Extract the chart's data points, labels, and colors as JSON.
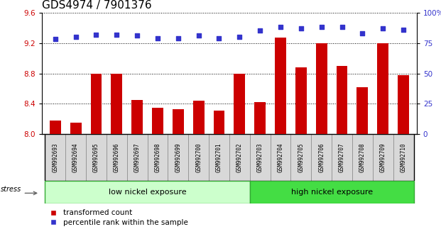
{
  "title": "GDS4974 / 7901376",
  "samples": [
    "GSM992693",
    "GSM992694",
    "GSM992695",
    "GSM992696",
    "GSM992697",
    "GSM992698",
    "GSM992699",
    "GSM992700",
    "GSM992701",
    "GSM992702",
    "GSM992703",
    "GSM992704",
    "GSM992705",
    "GSM992706",
    "GSM992707",
    "GSM992708",
    "GSM992709",
    "GSM992710"
  ],
  "bar_values": [
    8.18,
    8.15,
    8.8,
    8.8,
    8.45,
    8.35,
    8.33,
    8.44,
    8.31,
    8.8,
    8.42,
    9.27,
    8.88,
    9.2,
    8.9,
    8.62,
    9.2,
    8.78
  ],
  "dot_values": [
    78,
    80,
    82,
    82,
    81,
    79,
    79,
    81,
    79,
    80,
    85,
    88,
    87,
    88,
    88,
    83,
    87,
    86
  ],
  "bar_color": "#cc0000",
  "dot_color": "#3333cc",
  "ylim_left": [
    8.0,
    9.6
  ],
  "ylim_right": [
    0,
    100
  ],
  "yticks_left": [
    8.0,
    8.4,
    8.8,
    9.2,
    9.6
  ],
  "yticks_right": [
    0,
    25,
    50,
    75,
    100
  ],
  "low_nickel_count": 10,
  "group_labels": [
    "low nickel exposure",
    "high nickel exposure"
  ],
  "low_color": "#ccffcc",
  "high_color": "#44dd44",
  "stress_label": "stress",
  "legend_items": [
    {
      "label": "transformed count",
      "color": "#cc0000"
    },
    {
      "label": "percentile rank within the sample",
      "color": "#3333cc"
    }
  ],
  "tick_fontsize": 7.5,
  "label_fontsize": 8,
  "title_fontsize": 11,
  "sample_fontsize": 5.5
}
